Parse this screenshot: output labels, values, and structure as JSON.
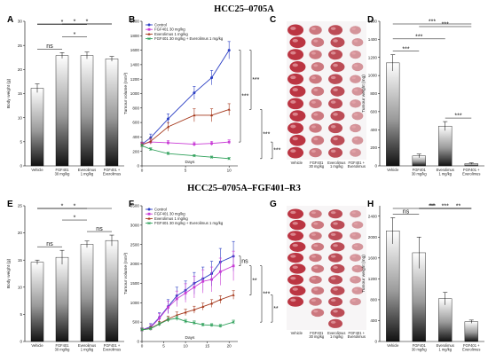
{
  "figure": {
    "title_top": "HCC25–0705A",
    "title_bottom": "HCC25–0705A–FGF401–R3"
  },
  "photo_panels": [
    {
      "letter": "C",
      "labels": [
        "Vehicle",
        "FGF401\n30 mg/kg",
        "Everolimus\n1 mg/kg",
        "FGF401 +\nEverolimus"
      ],
      "rows": [
        11,
        11,
        11,
        11
      ]
    },
    {
      "letter": "G",
      "labels": [
        "Vehicle",
        "FGF401\n30 mg/kg",
        "Everolimus\n1 mg/kg",
        "FGF401 +\nEverolimus"
      ],
      "rows": [
        9,
        10,
        11,
        9
      ]
    }
  ],
  "chart_data": [
    {
      "letter": "A",
      "type": "bar",
      "ylabel": "Body weight (g)",
      "ylim": [
        0,
        30
      ],
      "yticks": [
        0,
        5,
        10,
        15,
        20,
        25,
        30
      ],
      "categories": [
        "Vehicle",
        "FGF401\n30 mg/kg",
        "Everolimus\n1 mg/kg",
        "FGF401 +\nEverolimus"
      ],
      "values": [
        16.1,
        22.9,
        22.9,
        22.2
      ],
      "errors": [
        0.9,
        0.6,
        0.7,
        0.5
      ],
      "comparisons": [
        {
          "from": 0,
          "to": 3,
          "label": "*"
        },
        {
          "from": 0,
          "to": 2,
          "label": "*"
        },
        {
          "from": 0,
          "to": 1,
          "label": "ns"
        },
        {
          "from": 1,
          "to": 3,
          "label": "*"
        },
        {
          "from": 1,
          "to": 2,
          "label": "*"
        }
      ]
    },
    {
      "letter": "B",
      "type": "line",
      "xlabel": "Days",
      "ylabel": "Tumour volume (mm³)",
      "xlim": [
        0,
        11
      ],
      "xticks": [
        0,
        5,
        10
      ],
      "ylim": [
        0,
        2000
      ],
      "yticks": [
        0,
        200,
        400,
        600,
        800,
        1000,
        1200,
        1400,
        1600,
        1800,
        2000
      ],
      "series": [
        {
          "name": "Control",
          "color": "#2b3fc4",
          "marker": "circle",
          "x": [
            0,
            1,
            3,
            6,
            8,
            10
          ],
          "y": [
            300,
            390,
            650,
            1010,
            1220,
            1600
          ],
          "err": [
            30,
            50,
            70,
            90,
            100,
            120
          ]
        },
        {
          "name": "FGF401 30 mg/kg",
          "color": "#c93cd6",
          "marker": "square",
          "x": [
            0,
            1,
            3,
            6,
            8,
            10
          ],
          "y": [
            300,
            330,
            320,
            300,
            310,
            330
          ],
          "err": [
            25,
            30,
            30,
            30,
            30,
            30
          ]
        },
        {
          "name": "Everolimus 1 mg/kg",
          "color": "#a5381c",
          "marker": "triangle",
          "x": [
            0,
            1,
            3,
            6,
            8,
            10
          ],
          "y": [
            290,
            340,
            540,
            700,
            700,
            780
          ],
          "err": [
            30,
            40,
            60,
            90,
            90,
            80
          ]
        },
        {
          "name": "FGF401 30 mg/kg + Everolimus 1 mg/kg",
          "color": "#2ea05a",
          "marker": "cross",
          "x": [
            0,
            1,
            3,
            6,
            8,
            10
          ],
          "y": [
            280,
            230,
            170,
            140,
            120,
            100
          ],
          "err": [
            20,
            20,
            20,
            15,
            15,
            15
          ]
        }
      ],
      "brackets": [
        {
          "from": 0,
          "to": 1,
          "label": "***"
        },
        {
          "from": 0,
          "to": 2,
          "label": "***"
        },
        {
          "from": 2,
          "to": 3,
          "label": "***"
        },
        {
          "from": 1,
          "to": 3,
          "label": "***"
        }
      ]
    },
    {
      "letter": "D",
      "type": "bar",
      "ylabel": "Tumour weight (mg)",
      "ylim": [
        0,
        1600
      ],
      "yticks": [
        0,
        200,
        400,
        600,
        800,
        1000,
        1200,
        1400,
        1600
      ],
      "categories": [
        "Vehicle",
        "FGF401\n30 mg/kg",
        "Everolimus\n1 mg/kg",
        "FGF401 +\nEverolimus"
      ],
      "values": [
        1140,
        110,
        440,
        25
      ],
      "errors": [
        90,
        20,
        50,
        8
      ],
      "comparisons": [
        {
          "from": 0,
          "to": 3,
          "label": "***"
        },
        {
          "from": 0,
          "to": 2,
          "label": "***"
        },
        {
          "from": 0,
          "to": 1,
          "label": "***"
        },
        {
          "from": 2,
          "to": 3,
          "label": "***"
        },
        {
          "from": 1,
          "to": 3,
          "label": "***"
        }
      ]
    },
    {
      "letter": "E",
      "type": "bar",
      "ylabel": "Body weight (g)",
      "ylim": [
        0,
        25
      ],
      "yticks": [
        0,
        5,
        10,
        15,
        20,
        25
      ],
      "categories": [
        "Vehicle",
        "FGF401\n30 mg/kg",
        "Everolimus\n1 mg/kg",
        "FGF401 +\nEverolimus"
      ],
      "values": [
        14.6,
        15.5,
        17.9,
        18.6
      ],
      "errors": [
        0.4,
        1.3,
        0.6,
        1.0
      ],
      "comparisons": [
        {
          "from": 0,
          "to": 3,
          "label": "*"
        },
        {
          "from": 0,
          "to": 2,
          "label": "*"
        },
        {
          "from": 0,
          "to": 1,
          "label": "ns"
        },
        {
          "from": 2,
          "to": 3,
          "label": "ns"
        },
        {
          "from": 1,
          "to": 2,
          "label": "*"
        }
      ]
    },
    {
      "letter": "F",
      "type": "line",
      "xlabel": "Days",
      "ylabel": "Tumour volume (mm³)",
      "xlim": [
        0,
        22
      ],
      "xticks": [
        0,
        5,
        10,
        15,
        20
      ],
      "ylim": [
        0,
        3500
      ],
      "yticks": [
        0,
        500,
        1000,
        1500,
        2000,
        2500,
        3000,
        3500
      ],
      "series": [
        {
          "name": "Control",
          "color": "#2b3fc4",
          "marker": "circle",
          "x": [
            0,
            2,
            4,
            6,
            8,
            10,
            12,
            14,
            16,
            18,
            21
          ],
          "y": [
            300,
            380,
            620,
            900,
            1180,
            1320,
            1500,
            1620,
            1750,
            2050,
            2200
          ],
          "err": [
            50,
            80,
            120,
            180,
            220,
            240,
            280,
            300,
            320,
            350,
            380
          ]
        },
        {
          "name": "FGF401 30 mg/kg",
          "color": "#c93cd6",
          "marker": "square",
          "x": [
            0,
            2,
            4,
            6,
            8,
            10,
            12,
            14,
            16,
            18,
            21
          ],
          "y": [
            300,
            360,
            600,
            880,
            1100,
            1250,
            1400,
            1550,
            1600,
            1800,
            1950
          ],
          "err": [
            50,
            80,
            120,
            160,
            200,
            240,
            280,
            300,
            320,
            350,
            380
          ]
        },
        {
          "name": "Everolimus 1 mg/kg",
          "color": "#a5381c",
          "marker": "triangle",
          "x": [
            0,
            2,
            4,
            6,
            8,
            10,
            12,
            14,
            16,
            18,
            21
          ],
          "y": [
            300,
            340,
            460,
            580,
            680,
            750,
            820,
            900,
            980,
            1080,
            1200
          ],
          "err": [
            40,
            50,
            60,
            70,
            80,
            80,
            90,
            90,
            100,
            100,
            110
          ]
        },
        {
          "name": "FGF401 30 mg/kg + Everolimus 1 mg/kg",
          "color": "#2ea05a",
          "marker": "cross",
          "x": [
            0,
            2,
            4,
            6,
            8,
            10,
            12,
            14,
            16,
            18,
            21
          ],
          "y": [
            300,
            330,
            450,
            560,
            600,
            520,
            480,
            430,
            420,
            400,
            500
          ],
          "err": [
            40,
            40,
            50,
            60,
            60,
            50,
            50,
            40,
            40,
            40,
            50
          ]
        }
      ],
      "brackets": [
        {
          "from": 0,
          "to": 1,
          "label": "ns"
        },
        {
          "from": 1,
          "to": 2,
          "label": "**"
        },
        {
          "from": 1,
          "to": 3,
          "label": "***"
        },
        {
          "from": 2,
          "to": 3,
          "label": "**"
        }
      ]
    },
    {
      "letter": "H",
      "type": "bar",
      "ylabel": "Tumour weight (mg)",
      "ylim": [
        0,
        2600
      ],
      "yticks": [
        0,
        400,
        800,
        1200,
        1600,
        2000,
        2400
      ],
      "categories": [
        "Vehicle",
        "FGF401\n30 mg/kg",
        "Everolimus\n1 mg/kg",
        "FGF401 +\nEverolimus"
      ],
      "values": [
        2120,
        1700,
        820,
        380
      ],
      "errors": [
        250,
        300,
        120,
        30
      ],
      "comparisons": [
        {
          "from": 0,
          "to": 3,
          "label": "***"
        },
        {
          "from": 0,
          "to": 1,
          "label": "ns"
        },
        {
          "from": 1,
          "to": 3,
          "label": "***"
        },
        {
          "from": 1,
          "to": 2,
          "label": "**"
        },
        {
          "from": 2,
          "to": 3,
          "label": "**"
        }
      ]
    }
  ]
}
